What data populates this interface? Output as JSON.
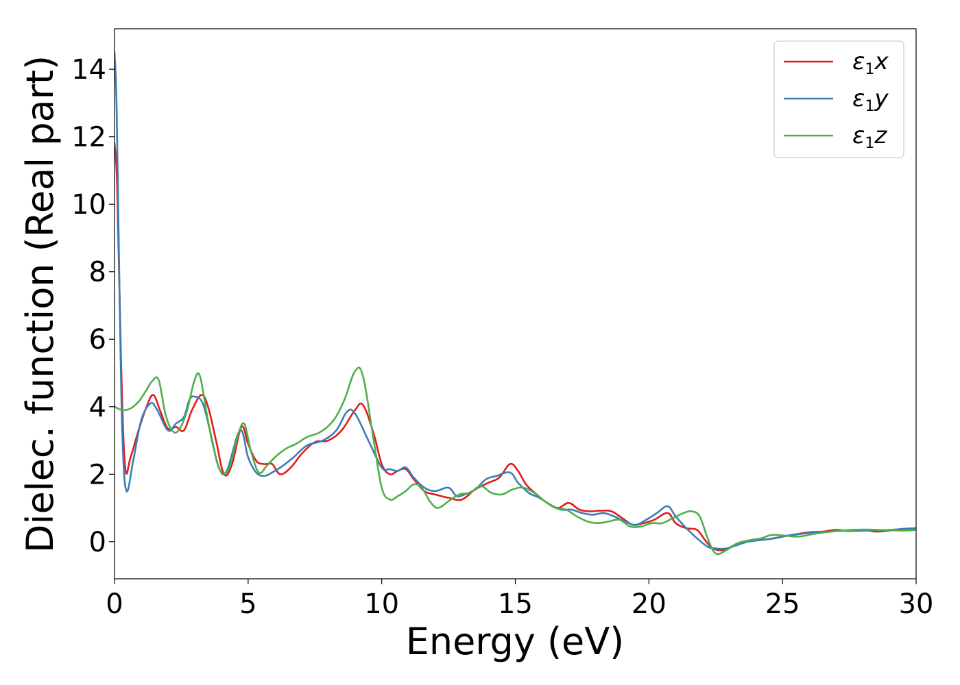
{
  "chart_data": {
    "type": "line",
    "title": "",
    "xlabel": "Energy (eV)",
    "ylabel": "Dielec. function (Real part)",
    "xlim": [
      0,
      30
    ],
    "ylim": [
      -1.1,
      15.2
    ],
    "xticks": [
      "0",
      "5",
      "10",
      "15",
      "20",
      "25",
      "30"
    ],
    "yticks": [
      "0",
      "2",
      "4",
      "6",
      "8",
      "10",
      "12",
      "14"
    ],
    "legend_position": "top-right",
    "grid": false,
    "series": [
      {
        "name": "ε1x",
        "legend": {
          "symbol": "ε",
          "sub": "1",
          "var": "x"
        },
        "color": "#e41a1c",
        "x": [
          0,
          0.1,
          0.25,
          0.4,
          0.6,
          0.9,
          1.2,
          1.45,
          1.7,
          2.0,
          2.3,
          2.6,
          2.9,
          3.25,
          3.5,
          3.8,
          4.1,
          4.4,
          4.75,
          5.0,
          5.3,
          5.6,
          5.9,
          6.2,
          6.6,
          7.0,
          7.5,
          8.0,
          8.5,
          9.0,
          9.3,
          9.7,
          10.0,
          10.3,
          10.6,
          10.9,
          11.2,
          11.6,
          12.0,
          12.5,
          13.0,
          13.5,
          14.0,
          14.4,
          14.8,
          15.1,
          15.4,
          15.8,
          16.2,
          16.6,
          17.0,
          17.4,
          17.8,
          18.2,
          18.6,
          19.0,
          19.4,
          19.8,
          20.2,
          20.7,
          21.0,
          21.4,
          21.8,
          22.1,
          22.4,
          22.8,
          23.2,
          23.6,
          24.0,
          24.5,
          25.0,
          25.5,
          26.0,
          26.5,
          27.0,
          27.5,
          28.0,
          28.5,
          29.0,
          29.5,
          30.0
        ],
        "y": [
          11.8,
          10.5,
          5.2,
          2.2,
          2.5,
          3.3,
          4.0,
          4.35,
          3.9,
          3.35,
          3.4,
          3.3,
          3.9,
          4.35,
          4.0,
          3.0,
          2.0,
          2.3,
          3.4,
          2.9,
          2.4,
          2.3,
          2.3,
          2.0,
          2.2,
          2.6,
          2.95,
          3.0,
          3.3,
          3.9,
          4.05,
          3.2,
          2.3,
          2.0,
          2.1,
          2.15,
          1.85,
          1.5,
          1.4,
          1.3,
          1.25,
          1.55,
          1.75,
          1.9,
          2.3,
          2.1,
          1.7,
          1.4,
          1.15,
          1.0,
          1.15,
          0.95,
          0.9,
          0.92,
          0.9,
          0.7,
          0.5,
          0.55,
          0.65,
          0.85,
          0.55,
          0.4,
          0.35,
          0.05,
          -0.2,
          -0.25,
          -0.1,
          0.0,
          0.05,
          0.08,
          0.15,
          0.22,
          0.28,
          0.3,
          0.35,
          0.32,
          0.35,
          0.3,
          0.33,
          0.38,
          0.4
        ]
      },
      {
        "name": "ε1y",
        "legend": {
          "symbol": "ε",
          "sub": "1",
          "var": "y"
        },
        "color": "#377eb8",
        "x": [
          0,
          0.08,
          0.2,
          0.3,
          0.45,
          0.7,
          1.0,
          1.35,
          1.6,
          2.0,
          2.3,
          2.6,
          2.8,
          3.0,
          3.3,
          3.6,
          3.9,
          4.2,
          4.7,
          5.0,
          5.3,
          5.6,
          5.9,
          6.3,
          6.7,
          7.2,
          7.8,
          8.3,
          8.7,
          9.0,
          9.5,
          10.0,
          10.3,
          10.6,
          10.9,
          11.2,
          11.6,
          12.0,
          12.5,
          12.8,
          13.1,
          13.5,
          13.9,
          14.3,
          14.8,
          15.1,
          15.5,
          15.9,
          16.3,
          16.7,
          17.1,
          17.5,
          17.9,
          18.3,
          18.7,
          19.1,
          19.5,
          19.9,
          20.3,
          20.7,
          21.0,
          21.4,
          21.8,
          22.2,
          22.5,
          22.9,
          23.3,
          23.7,
          24.2,
          24.7,
          25.2,
          25.7,
          26.2,
          26.7,
          27.2,
          27.7,
          28.2,
          28.7,
          29.2,
          29.6,
          30.0
        ],
        "y": [
          14.5,
          12.8,
          6.8,
          3.0,
          1.5,
          2.4,
          3.6,
          4.1,
          3.9,
          3.3,
          3.5,
          3.7,
          4.2,
          4.3,
          4.1,
          3.2,
          2.2,
          2.1,
          3.3,
          2.5,
          2.05,
          1.95,
          2.05,
          2.25,
          2.5,
          2.85,
          3.0,
          3.3,
          3.85,
          3.8,
          3.0,
          2.2,
          2.15,
          2.1,
          2.2,
          1.9,
          1.6,
          1.5,
          1.6,
          1.35,
          1.4,
          1.55,
          1.85,
          1.95,
          2.05,
          1.75,
          1.45,
          1.3,
          1.1,
          0.95,
          0.95,
          0.85,
          0.8,
          0.85,
          0.75,
          0.6,
          0.5,
          0.65,
          0.85,
          1.05,
          0.75,
          0.4,
          0.1,
          -0.15,
          -0.2,
          -0.2,
          -0.1,
          0.0,
          0.05,
          0.1,
          0.18,
          0.23,
          0.28,
          0.3,
          0.32,
          0.32,
          0.33,
          0.34,
          0.36,
          0.38,
          0.4
        ]
      },
      {
        "name": "ε1z",
        "legend": {
          "symbol": "ε",
          "sub": "1",
          "var": "z"
        },
        "color": "#4daf4a",
        "x": [
          0,
          0.3,
          0.6,
          0.9,
          1.2,
          1.4,
          1.65,
          1.9,
          2.15,
          2.4,
          2.7,
          3.0,
          3.2,
          3.45,
          3.7,
          4.0,
          4.3,
          4.6,
          4.85,
          5.1,
          5.4,
          5.7,
          6.0,
          6.4,
          6.8,
          7.2,
          7.7,
          8.2,
          8.6,
          9.0,
          9.3,
          9.7,
          10.0,
          10.3,
          10.6,
          10.9,
          11.2,
          11.5,
          11.8,
          12.1,
          12.5,
          12.9,
          13.3,
          13.7,
          14.1,
          14.5,
          14.9,
          15.3,
          15.7,
          16.1,
          16.5,
          16.9,
          17.3,
          17.7,
          18.1,
          18.5,
          18.9,
          19.3,
          19.7,
          20.1,
          20.5,
          20.9,
          21.3,
          21.6,
          21.9,
          22.2,
          22.5,
          22.9,
          23.3,
          23.8,
          24.2,
          24.6,
          25.1,
          25.6,
          26.1,
          26.6,
          27.1,
          27.6,
          28.1,
          28.6,
          29.1,
          29.6,
          30.0
        ],
        "y": [
          4.0,
          3.9,
          3.95,
          4.15,
          4.5,
          4.75,
          4.8,
          3.8,
          3.3,
          3.3,
          3.85,
          4.8,
          4.9,
          3.8,
          2.8,
          2.05,
          2.2,
          3.1,
          3.5,
          2.7,
          2.05,
          2.25,
          2.5,
          2.75,
          2.9,
          3.1,
          3.25,
          3.6,
          4.2,
          5.05,
          4.9,
          3.0,
          1.6,
          1.25,
          1.35,
          1.5,
          1.7,
          1.6,
          1.2,
          1.0,
          1.2,
          1.4,
          1.45,
          1.65,
          1.45,
          1.4,
          1.55,
          1.6,
          1.45,
          1.2,
          1.0,
          0.95,
          0.75,
          0.6,
          0.55,
          0.6,
          0.65,
          0.45,
          0.45,
          0.55,
          0.55,
          0.7,
          0.85,
          0.9,
          0.75,
          0.1,
          -0.35,
          -0.25,
          -0.05,
          0.05,
          0.1,
          0.2,
          0.18,
          0.15,
          0.22,
          0.28,
          0.32,
          0.35,
          0.36,
          0.35,
          0.34,
          0.33,
          0.35
        ]
      }
    ]
  }
}
